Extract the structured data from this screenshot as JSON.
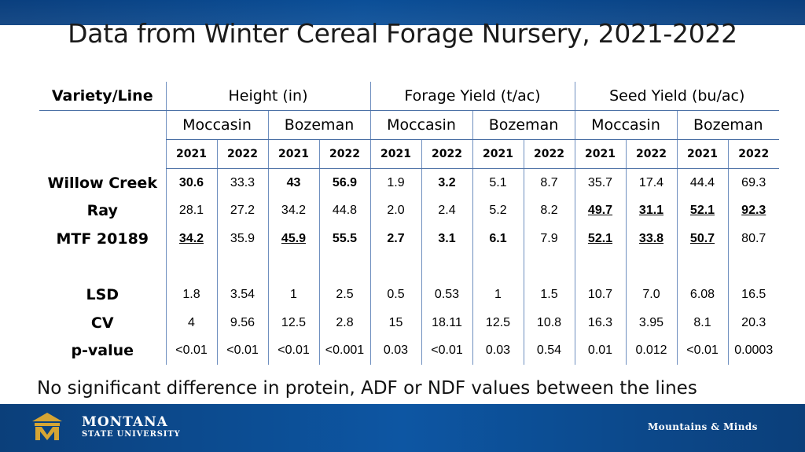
{
  "title": "Data from Winter Cereal Forage Nursery, 2021-2022",
  "table": {
    "variety_header": "Variety/Line",
    "groups": [
      {
        "label": "Height (in)"
      },
      {
        "label": "Forage Yield (t/ac)"
      },
      {
        "label": "Seed Yield (bu/ac)"
      }
    ],
    "locations": [
      "Moccasin",
      "Bozeman",
      "Moccasin",
      "Bozeman",
      "Moccasin",
      "Bozeman"
    ],
    "years": [
      "2021",
      "2022",
      "2021",
      "2022",
      "2021",
      "2022",
      "2021",
      "2022",
      "2021",
      "2022",
      "2021",
      "2022"
    ],
    "rows": [
      {
        "label": "Willow Creek",
        "cells": [
          {
            "v": "30.6",
            "s": "bold"
          },
          {
            "v": "33.3",
            "s": ""
          },
          {
            "v": "43",
            "s": "bold"
          },
          {
            "v": "56.9",
            "s": "bold"
          },
          {
            "v": "1.9",
            "s": ""
          },
          {
            "v": "3.2",
            "s": "bold"
          },
          {
            "v": "5.1",
            "s": ""
          },
          {
            "v": "8.7",
            "s": ""
          },
          {
            "v": "35.7",
            "s": ""
          },
          {
            "v": "17.4",
            "s": ""
          },
          {
            "v": "44.4",
            "s": ""
          },
          {
            "v": "69.3",
            "s": ""
          }
        ]
      },
      {
        "label": "Ray",
        "cells": [
          {
            "v": "28.1",
            "s": ""
          },
          {
            "v": "27.2",
            "s": ""
          },
          {
            "v": "34.2",
            "s": ""
          },
          {
            "v": "44.8",
            "s": ""
          },
          {
            "v": "2.0",
            "s": ""
          },
          {
            "v": "2.4",
            "s": ""
          },
          {
            "v": "5.2",
            "s": ""
          },
          {
            "v": "8.2",
            "s": ""
          },
          {
            "v": "49.7",
            "s": "ul"
          },
          {
            "v": "31.1",
            "s": "ul"
          },
          {
            "v": "52.1",
            "s": "ul"
          },
          {
            "v": "92.3",
            "s": "ul"
          }
        ]
      },
      {
        "label": "MTF 20189",
        "cells": [
          {
            "v": "34.2",
            "s": "ul"
          },
          {
            "v": "35.9",
            "s": ""
          },
          {
            "v": "45.9",
            "s": "ul"
          },
          {
            "v": "55.5",
            "s": "bold"
          },
          {
            "v": "2.7",
            "s": "bold"
          },
          {
            "v": "3.1",
            "s": "bold"
          },
          {
            "v": "6.1",
            "s": "bold"
          },
          {
            "v": "7.9",
            "s": ""
          },
          {
            "v": "52.1",
            "s": "ul"
          },
          {
            "v": "33.8",
            "s": "ul"
          },
          {
            "v": "50.7",
            "s": "ul"
          },
          {
            "v": "80.7",
            "s": ""
          }
        ]
      }
    ],
    "stats": [
      {
        "label": "LSD",
        "cells": [
          "1.8",
          "3.54",
          "1",
          "2.5",
          "0.5",
          "0.53",
          "1",
          "1.5",
          "10.7",
          "7.0",
          "6.08",
          "16.5"
        ]
      },
      {
        "label": "CV",
        "cells": [
          "4",
          "9.56",
          "12.5",
          "2.8",
          "15",
          "18.11",
          "12.5",
          "10.8",
          "16.3",
          "3.95",
          "8.1",
          "20.3"
        ]
      },
      {
        "label": "p-value",
        "cells": [
          "<0.01",
          "<0.01",
          "<0.01",
          "<0.001",
          "0.03",
          "<0.01",
          "0.03",
          "0.54",
          "0.01",
          "0.012",
          "<0.01",
          "0.0003"
        ]
      }
    ]
  },
  "note": "No significant difference in protein, ADF or NDF values between the lines",
  "footer": {
    "logo_line1": "MONTANA",
    "logo_line2": "STATE UNIVERSITY",
    "tagline": "Mountains & Minds",
    "logo_icon": "msu-m-logo-icon"
  },
  "colors": {
    "bar_blue": "#0b4f98",
    "rule_blue": "#4a6fa5",
    "logo_gold": "#d6a534"
  }
}
